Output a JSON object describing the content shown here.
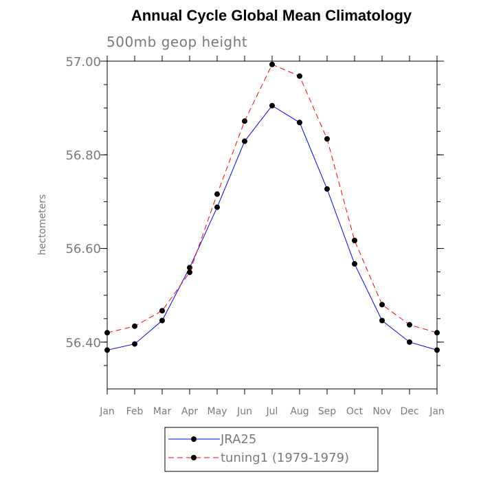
{
  "title": "Annual Cycle Global Mean Climatology",
  "subtitle": "500mb geop height",
  "ylabel": "hectometers",
  "y_tick_labels": [
    "57.00",
    "56.80",
    "56.60",
    "56.40"
  ],
  "legend": [
    {
      "label": "JRA25",
      "color": "#0000ff",
      "dash": "solid"
    },
    {
      "label": "tuning1 (1979-1979)",
      "color": "#ff0000",
      "dash": "dashed"
    }
  ],
  "chart_data": {
    "type": "line",
    "title": "Annual Cycle Global Mean Climatology",
    "subtitle": "500mb geop height",
    "xlabel": "",
    "ylabel": "hectometers",
    "categories": [
      "Jan",
      "Feb",
      "Mar",
      "Apr",
      "May",
      "Jun",
      "Jul",
      "Aug",
      "Sep",
      "Oct",
      "Nov",
      "Dec",
      "Jan"
    ],
    "ylim": [
      56.3,
      57.0
    ],
    "y_ticks": [
      56.4,
      56.6,
      56.8,
      57.0
    ],
    "y_minor_step": 0.05,
    "grid": false,
    "legend_position": "bottom",
    "series": [
      {
        "name": "JRA25",
        "color": "#0000ff",
        "dash": "solid",
        "values": [
          56.383,
          56.396,
          56.446,
          56.559,
          56.688,
          56.829,
          56.905,
          56.869,
          56.727,
          56.567,
          56.446,
          56.4,
          56.383
        ]
      },
      {
        "name": "tuning1 (1979-1979)",
        "color": "#ff0000",
        "dash": "dashed",
        "values": [
          56.42,
          56.434,
          56.467,
          56.549,
          56.716,
          56.872,
          56.993,
          56.968,
          56.834,
          56.617,
          56.48,
          56.437,
          56.42
        ]
      }
    ]
  }
}
